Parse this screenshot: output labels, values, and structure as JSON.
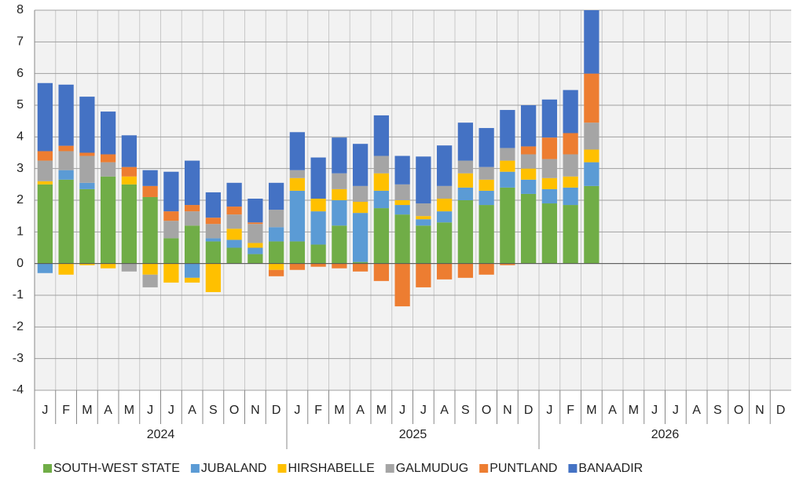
{
  "chart_data": {
    "type": "stacked_bar",
    "categories": [
      "J",
      "F",
      "M",
      "A",
      "M",
      "J",
      "J",
      "A",
      "S",
      "O",
      "N",
      "D",
      "J",
      "F",
      "M",
      "A",
      "M",
      "J",
      "J",
      "A",
      "S",
      "O",
      "N",
      "D",
      "J",
      "F",
      "M",
      "A",
      "M",
      "J",
      "J",
      "A",
      "S",
      "O",
      "N",
      "D"
    ],
    "groups": [
      "2024",
      "2025",
      "2026"
    ],
    "ylim": [
      -4,
      8
    ],
    "yticks": [
      -4,
      -3,
      -2,
      -1,
      0,
      1,
      2,
      3,
      4,
      5,
      6,
      7,
      8
    ],
    "grid": true,
    "legend": "bottom",
    "series": [
      {
        "name": "SOUTH-WEST STATE",
        "color": "#70ad47",
        "values": [
          2.5,
          2.65,
          2.35,
          2.75,
          2.5,
          2.1,
          0.8,
          1.2,
          0.7,
          0.5,
          0.3,
          0.7,
          0.7,
          0.6,
          1.2,
          0.05,
          1.75,
          1.55,
          1.2,
          1.3,
          2.0,
          1.85,
          2.4,
          2.2,
          1.9,
          1.85,
          2.45,
          null,
          null,
          null,
          null,
          null,
          null,
          null,
          null,
          null
        ]
      },
      {
        "name": "JUBALAND",
        "color": "#5b9bd5",
        "values": [
          -0.3,
          0.3,
          0.2,
          0,
          0,
          0,
          0,
          -0.45,
          0.1,
          0.25,
          0.2,
          0.45,
          1.6,
          1.05,
          0.8,
          1.55,
          0.55,
          0.3,
          0.2,
          0.35,
          0.4,
          0.45,
          0.5,
          0.45,
          0.45,
          0.55,
          0.75,
          null,
          null,
          null,
          null,
          null,
          null,
          null,
          null,
          null
        ]
      },
      {
        "name": "HIRSHABELLE",
        "color": "#ffc000",
        "values": [
          0.1,
          -0.35,
          -0.05,
          -0.15,
          0.25,
          -0.35,
          -0.6,
          -0.15,
          -0.9,
          0.35,
          0.15,
          -0.2,
          0.4,
          0.4,
          0.35,
          0.35,
          0.55,
          0.15,
          0.1,
          0.4,
          0.45,
          0.35,
          0.35,
          0.35,
          0.35,
          0.35,
          0.4,
          null,
          null,
          null,
          null,
          null,
          null,
          null,
          null,
          null
        ]
      },
      {
        "name": "GALMUDUG",
        "color": "#a5a5a5",
        "values": [
          0.65,
          0.6,
          0.85,
          0.45,
          -0.25,
          -0.4,
          0.55,
          0.45,
          0.45,
          0.45,
          0.6,
          0.55,
          0.25,
          0,
          0.5,
          0.5,
          0.55,
          0.5,
          0.4,
          0.4,
          0.4,
          0.4,
          0.4,
          0.45,
          0.6,
          0.7,
          0.85,
          null,
          null,
          null,
          null,
          null,
          null,
          null,
          null,
          null
        ]
      },
      {
        "name": "PUNTLAND",
        "color": "#ed7d31",
        "values": [
          0.3,
          0.17,
          0.1,
          0.25,
          0.3,
          0.35,
          0.3,
          0.2,
          0.2,
          0.25,
          0.05,
          -0.2,
          -0.2,
          -0.1,
          -0.15,
          -0.25,
          -0.55,
          -1.35,
          -0.75,
          -0.5,
          -0.45,
          -0.35,
          -0.05,
          0.25,
          0.68,
          0.67,
          1.55,
          null,
          null,
          null,
          null,
          null,
          null,
          null,
          null,
          null
        ]
      },
      {
        "name": "BANAADIR",
        "color": "#4472c4",
        "values": [
          2.15,
          1.93,
          1.77,
          1.35,
          1.0,
          0.5,
          1.25,
          1.4,
          0.8,
          0.75,
          0.75,
          0.85,
          1.2,
          1.3,
          1.13,
          1.33,
          1.28,
          0.9,
          1.48,
          1.28,
          1.2,
          1.23,
          1.2,
          1.3,
          1.2,
          1.36,
          2.0,
          null,
          null,
          null,
          null,
          null,
          null,
          null,
          null,
          null
        ]
      }
    ]
  }
}
